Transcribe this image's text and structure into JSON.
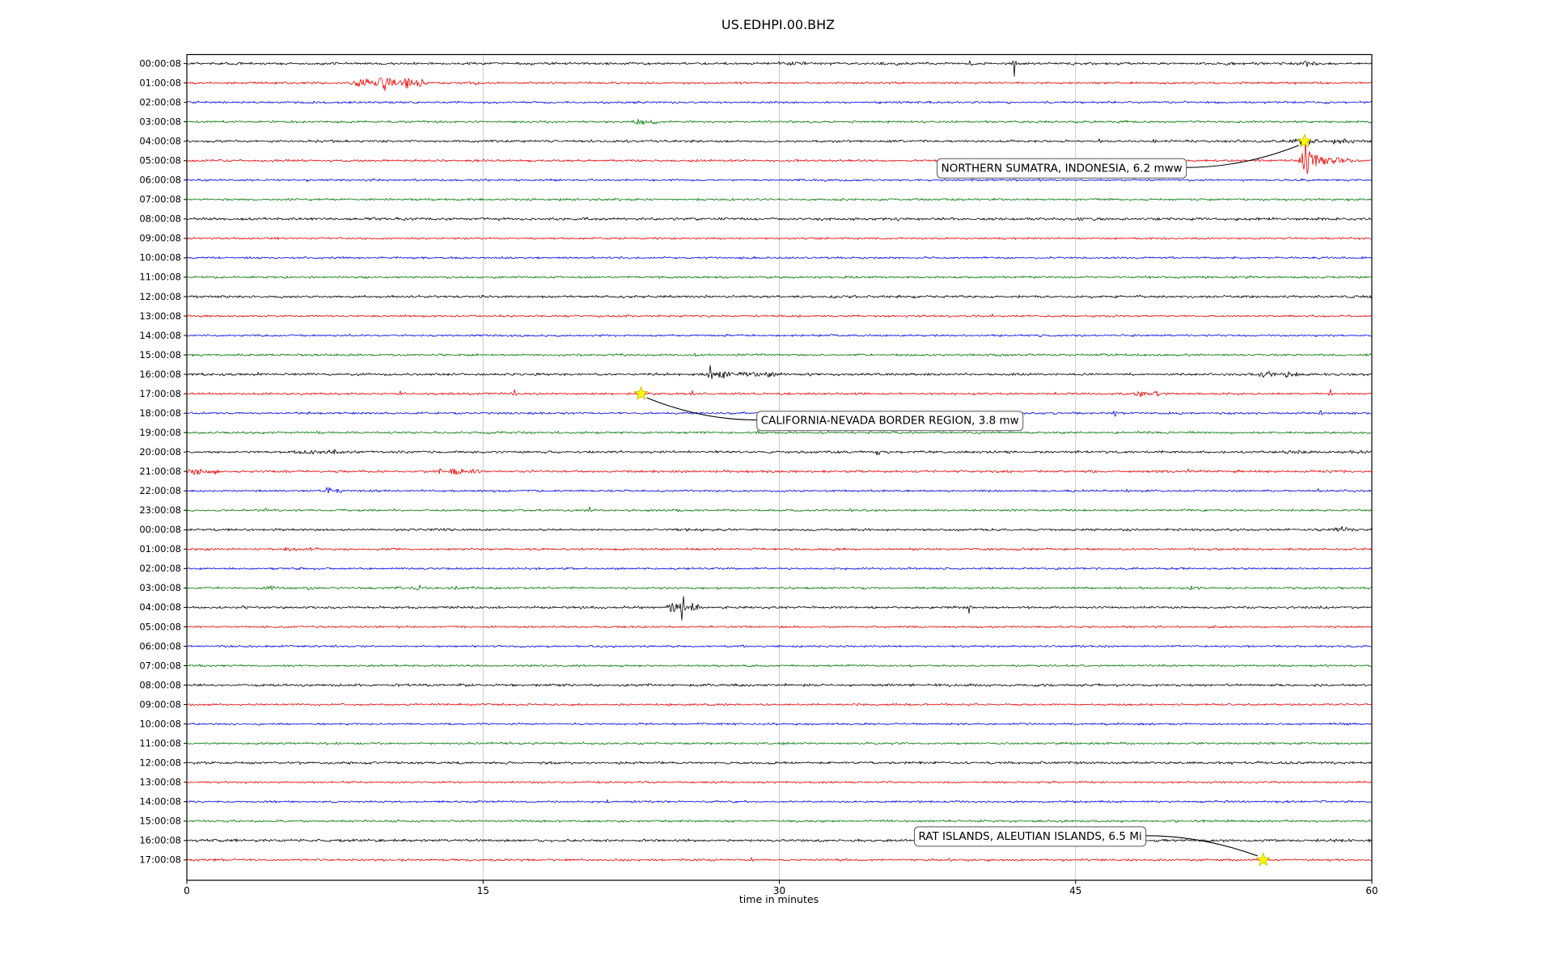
{
  "chart_data": {
    "type": "line",
    "variant": "seismogram_dayplot",
    "title": "US.EDHPI.00.BHZ",
    "xlabel": "time in minutes",
    "xlim": [
      0,
      60
    ],
    "xticks": [
      "0",
      "15",
      "30",
      "45",
      "60"
    ],
    "xtick_values": [
      0,
      15,
      30,
      45,
      60
    ],
    "grid_x_values": [
      15,
      30,
      45
    ],
    "legend": "none",
    "grid": "vertical-only",
    "colors": {
      "k": "#000000",
      "r": "#ee0000",
      "b": "#0000ee",
      "g": "#007700"
    },
    "style": {
      "grid_color": "#c9c9c9",
      "frame_color": "#000000",
      "star_fill": "#ffff00",
      "star_edge": "#c8b400",
      "annotation_bg": "#ffffff",
      "annotation_border": "#555555",
      "leader_color": "#000000"
    },
    "rows": [
      {
        "label": "00:00:08",
        "color": "k",
        "noise": 1.5,
        "events": [
          {
            "t": 29.8,
            "a": 2.5,
            "w": 0.25
          },
          {
            "t": 30.7,
            "a": 3,
            "w": 0.3
          },
          {
            "t": 36.0,
            "a": 2,
            "w": 0.15
          },
          {
            "t": 39.7,
            "a": 3,
            "w": 0.12
          },
          {
            "t": 41.9,
            "a": -16,
            "w": 0.05,
            "type": "spike"
          },
          {
            "t": 56.8,
            "a": 3.5,
            "w": 0.25
          }
        ]
      },
      {
        "label": "01:00:08",
        "color": "r",
        "noise": 1.3,
        "events": [
          {
            "t": 8.9,
            "a": 6,
            "w": 0.35
          },
          {
            "t": 10.1,
            "a": 9,
            "w": 0.4
          },
          {
            "t": 11.2,
            "a": 6,
            "w": 0.35
          },
          {
            "t": 12.0,
            "a": 4,
            "w": 0.2
          },
          {
            "t": 14.6,
            "a": 2.5,
            "w": 0.15
          }
        ]
      },
      {
        "label": "02:00:08",
        "color": "b",
        "noise": 1.3,
        "events": []
      },
      {
        "label": "03:00:08",
        "color": "g",
        "noise": 1.25,
        "events": [
          {
            "t": 22.9,
            "a": 5,
            "w": 0.2
          },
          {
            "t": 23.6,
            "a": 3.5,
            "w": 0.15
          }
        ]
      },
      {
        "label": "04:00:08",
        "color": "k",
        "noise": 1.4,
        "events": [
          {
            "t": 46.2,
            "a": 2.5,
            "w": 0.05,
            "type": "spike"
          },
          {
            "t": 49.0,
            "a": 2.5,
            "w": 0.08
          },
          {
            "t": 53.0,
            "a": 2,
            "w": 0.5
          },
          {
            "t": 56.6,
            "a": 4,
            "w": 0.6
          },
          {
            "t": 58.5,
            "a": 3,
            "w": 0.5
          }
        ]
      },
      {
        "label": "05:00:08",
        "color": "r",
        "noise": 1.3,
        "events": [
          {
            "t": 56.55,
            "a": 10,
            "w": 0.15
          },
          {
            "t": 56.65,
            "a": 18,
            "w": 0.05,
            "type": "spike"
          },
          {
            "t": 56.75,
            "a": -20,
            "w": 0.06,
            "type": "spike"
          },
          {
            "t": 57.1,
            "a": 9,
            "w": 0.3
          },
          {
            "t": 58.0,
            "a": 4,
            "w": 0.5
          },
          {
            "t": 59.0,
            "a": 2.5,
            "w": 0.5
          }
        ]
      },
      {
        "label": "06:00:08",
        "color": "b",
        "noise": 1.25,
        "events": []
      },
      {
        "label": "07:00:08",
        "color": "g",
        "noise": 1.25,
        "events": []
      },
      {
        "label": "08:00:08",
        "color": "k",
        "noise": 1.6,
        "events": []
      },
      {
        "label": "09:00:08",
        "color": "r",
        "noise": 1.2,
        "events": []
      },
      {
        "label": "10:00:08",
        "color": "b",
        "noise": 1.2,
        "events": []
      },
      {
        "label": "11:00:08",
        "color": "g",
        "noise": 1.3,
        "events": []
      },
      {
        "label": "12:00:08",
        "color": "k",
        "noise": 1.5,
        "events": []
      },
      {
        "label": "13:00:08",
        "color": "r",
        "noise": 1.2,
        "events": [
          {
            "t": 40.8,
            "a": 2.5,
            "w": 0.05,
            "type": "spike"
          }
        ]
      },
      {
        "label": "14:00:08",
        "color": "b",
        "noise": 1.2,
        "events": [
          {
            "t": 48.0,
            "a": 2,
            "w": 0.05,
            "type": "spike"
          }
        ]
      },
      {
        "label": "15:00:08",
        "color": "g",
        "noise": 1.3,
        "events": [
          {
            "t": 25.7,
            "a": 3,
            "w": 0.06,
            "type": "spike"
          }
        ]
      },
      {
        "label": "16:00:08",
        "color": "k",
        "noise": 1.5,
        "events": [
          {
            "t": 3.6,
            "a": 2.5,
            "w": 0.05,
            "type": "spike"
          },
          {
            "t": 26.5,
            "a": 10,
            "w": 0.06,
            "type": "spike"
          },
          {
            "t": 27.2,
            "a": 5,
            "w": 0.35
          },
          {
            "t": 28.4,
            "a": 4,
            "w": 0.35
          },
          {
            "t": 29.5,
            "a": 3,
            "w": 0.25
          },
          {
            "t": 54.6,
            "a": 3,
            "w": 0.5
          },
          {
            "t": 55.9,
            "a": 3,
            "w": 0.3
          }
        ]
      },
      {
        "label": "17:00:08",
        "color": "r",
        "noise": 1.3,
        "events": [
          {
            "t": 10.8,
            "a": 4,
            "w": 0.05,
            "type": "spike"
          },
          {
            "t": 16.6,
            "a": 5,
            "w": 0.06,
            "type": "spike"
          },
          {
            "t": 23.0,
            "a": 3,
            "w": 0.1
          },
          {
            "t": 25.6,
            "a": 3.5,
            "w": 0.05,
            "type": "spike"
          },
          {
            "t": 44.0,
            "a": 2.5,
            "w": 0.05,
            "type": "spike"
          },
          {
            "t": 48.3,
            "a": 4,
            "w": 0.25
          },
          {
            "t": 49.1,
            "a": 3.5,
            "w": 0.15
          },
          {
            "t": 57.9,
            "a": 5,
            "w": 0.06,
            "type": "spike"
          }
        ]
      },
      {
        "label": "18:00:08",
        "color": "b",
        "noise": 1.3,
        "events": [
          {
            "t": 33.0,
            "a": 2,
            "w": 0.05,
            "type": "spike"
          },
          {
            "t": 47.0,
            "a": -6,
            "w": 0.05,
            "type": "spike"
          },
          {
            "t": 57.4,
            "a": 4,
            "w": 0.06,
            "type": "spike"
          }
        ]
      },
      {
        "label": "19:00:08",
        "color": "g",
        "noise": 1.3,
        "events": [
          {
            "t": 28.9,
            "a": 3,
            "w": 0.05,
            "type": "spike"
          }
        ]
      },
      {
        "label": "20:00:08",
        "color": "k",
        "noise": 1.5,
        "events": [
          {
            "t": 6.0,
            "a": 2.5,
            "w": 0.5
          },
          {
            "t": 7.5,
            "a": 2.5,
            "w": 0.35
          },
          {
            "t": 35.0,
            "a": 4,
            "w": 0.08
          },
          {
            "t": 35.6,
            "a": 3.5,
            "w": 0.07
          },
          {
            "t": 56.2,
            "a": 2.5,
            "w": 0.4
          },
          {
            "t": 59.3,
            "a": 3,
            "w": 0.3
          }
        ]
      },
      {
        "label": "21:00:08",
        "color": "r",
        "noise": 1.4,
        "events": [
          {
            "t": 0.5,
            "a": 4,
            "w": 0.3
          },
          {
            "t": 1.3,
            "a": 3.5,
            "w": 0.25
          },
          {
            "t": 12.8,
            "a": 4,
            "w": 0.2
          },
          {
            "t": 13.6,
            "a": 4.5,
            "w": 0.25
          },
          {
            "t": 14.6,
            "a": 3.5,
            "w": 0.2
          },
          {
            "t": 30.9,
            "a": 2.5,
            "w": 0.05,
            "type": "spike"
          },
          {
            "t": 37.9,
            "a": 2.5,
            "w": 0.05,
            "type": "spike"
          },
          {
            "t": 45.8,
            "a": 2.5,
            "w": 0.05,
            "type": "spike"
          },
          {
            "t": 50.7,
            "a": 2.5,
            "w": 0.05,
            "type": "spike"
          }
        ]
      },
      {
        "label": "22:00:08",
        "color": "b",
        "noise": 1.3,
        "events": [
          {
            "t": 7.2,
            "a": 5,
            "w": 0.12
          },
          {
            "t": 7.7,
            "a": 3,
            "w": 0.1
          },
          {
            "t": 21.5,
            "a": 2,
            "w": 0.05,
            "type": "spike"
          },
          {
            "t": 47.6,
            "a": 2,
            "w": 0.05,
            "type": "spike"
          },
          {
            "t": 57.3,
            "a": 2.5,
            "w": 0.05,
            "type": "spike"
          }
        ]
      },
      {
        "label": "23:00:08",
        "color": "g",
        "noise": 1.3,
        "events": [
          {
            "t": 4.0,
            "a": 3,
            "w": 0.06,
            "type": "spike"
          },
          {
            "t": 10.5,
            "a": 2,
            "w": 0.05,
            "type": "spike"
          },
          {
            "t": 20.4,
            "a": 4,
            "w": 0.06,
            "type": "spike"
          },
          {
            "t": 33.6,
            "a": 2.5,
            "w": 0.05,
            "type": "spike"
          },
          {
            "t": 56.0,
            "a": 2,
            "w": 0.05,
            "type": "spike"
          }
        ]
      },
      {
        "label": "00:00:08",
        "color": "k",
        "noise": 1.4,
        "events": [
          {
            "t": 58.6,
            "a": 3,
            "w": 0.4
          }
        ]
      },
      {
        "label": "01:00:08",
        "color": "r",
        "noise": 1.3,
        "events": [
          {
            "t": 5.2,
            "a": 2.2,
            "w": 0.5
          },
          {
            "t": 6.3,
            "a": 2,
            "w": 0.25
          }
        ]
      },
      {
        "label": "02:00:08",
        "color": "b",
        "noise": 1.2,
        "events": []
      },
      {
        "label": "03:00:08",
        "color": "g",
        "noise": 1.3,
        "events": [
          {
            "t": 4.3,
            "a": 3,
            "w": 0.3
          },
          {
            "t": 6.2,
            "a": 2.5,
            "w": 0.18
          },
          {
            "t": 11.7,
            "a": 3,
            "w": 0.2
          },
          {
            "t": 13.7,
            "a": 6,
            "w": 0.08
          },
          {
            "t": 14.5,
            "a": 3,
            "w": 0.15
          },
          {
            "t": 50.8,
            "a": 2.5,
            "w": 0.35
          }
        ]
      },
      {
        "label": "04:00:08",
        "color": "k",
        "noise": 1.4,
        "events": [
          {
            "t": 24.6,
            "a": 7,
            "w": 0.2
          },
          {
            "t": 25.05,
            "a": -15,
            "w": 0.05,
            "type": "spike"
          },
          {
            "t": 25.15,
            "a": 14,
            "w": 0.05,
            "type": "spike"
          },
          {
            "t": 25.6,
            "a": 6,
            "w": 0.25
          },
          {
            "t": 39.6,
            "a": -7,
            "w": 0.05,
            "type": "spike"
          }
        ]
      },
      {
        "label": "05:00:08",
        "color": "r",
        "noise": 1.2,
        "events": []
      },
      {
        "label": "06:00:08",
        "color": "b",
        "noise": 1.2,
        "events": []
      },
      {
        "label": "07:00:08",
        "color": "g",
        "noise": 1.25,
        "events": []
      },
      {
        "label": "08:00:08",
        "color": "k",
        "noise": 1.5,
        "events": []
      },
      {
        "label": "09:00:08",
        "color": "r",
        "noise": 1.2,
        "events": []
      },
      {
        "label": "10:00:08",
        "color": "b",
        "noise": 1.2,
        "events": []
      },
      {
        "label": "11:00:08",
        "color": "g",
        "noise": 1.3,
        "events": []
      },
      {
        "label": "12:00:08",
        "color": "k",
        "noise": 1.5,
        "events": []
      },
      {
        "label": "13:00:08",
        "color": "r",
        "noise": 1.2,
        "events": []
      },
      {
        "label": "14:00:08",
        "color": "b",
        "noise": 1.2,
        "events": [
          {
            "t": 21.3,
            "a": 3,
            "w": 0.05,
            "type": "spike"
          }
        ]
      },
      {
        "label": "15:00:08",
        "color": "g",
        "noise": 1.3,
        "events": []
      },
      {
        "label": "16:00:08",
        "color": "k",
        "noise": 1.5,
        "events": [
          {
            "t": 39.9,
            "a": 3,
            "w": 0.08
          },
          {
            "t": 40.2,
            "a": -8,
            "w": 0.06,
            "type": "spike"
          },
          {
            "t": 40.5,
            "a": 5,
            "w": 0.1
          }
        ]
      },
      {
        "label": "17:00:08",
        "color": "r",
        "noise": 1.3,
        "events": [
          {
            "t": 28.6,
            "a": 2.5,
            "w": 0.05,
            "type": "spike"
          },
          {
            "t": 38.6,
            "a": 3,
            "w": 0.06,
            "type": "spike"
          },
          {
            "t": 47.7,
            "a": 2.5,
            "w": 0.05,
            "type": "spike"
          }
        ]
      }
    ],
    "annotations": [
      {
        "text": "NORTHERN SUMATRA, INDONESIA, 6.2 mww",
        "star": {
          "t": 56.6,
          "row": 4
        },
        "box": {
          "t": 44.3,
          "row": 5.35
        },
        "attach": "right"
      },
      {
        "text": "CALIFORNIA-NEVADA BORDER REGION, 3.8 mw",
        "star": {
          "t": 23.0,
          "row": 17
        },
        "box": {
          "t": 35.6,
          "row": 18.35
        },
        "attach": "left"
      },
      {
        "text": "RAT ISLANDS, ALEUTIAN ISLANDS, 6.5 Mi",
        "star": {
          "t": 54.5,
          "row": 41
        },
        "box": {
          "t": 42.7,
          "row": 39.75
        },
        "attach": "right"
      }
    ]
  }
}
